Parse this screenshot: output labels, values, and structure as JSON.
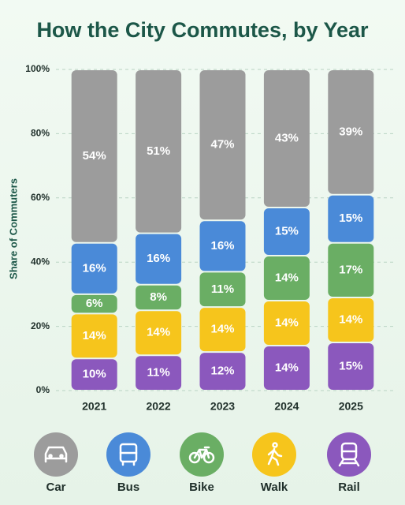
{
  "chart_data": {
    "type": "stacked_bar",
    "title": "How the City Commutes, by Year",
    "y_label": "Share of Commuters",
    "categories": [
      "2021",
      "2022",
      "2023",
      "2024",
      "2025"
    ],
    "series": [
      {
        "name": "Car",
        "color": "#9c9c9c",
        "values": [
          54,
          51,
          47,
          43,
          39
        ],
        "value_labels": [
          "54%",
          "51%",
          "47%",
          "43%",
          "39%"
        ]
      },
      {
        "name": "Bus",
        "color": "#4a8ad8",
        "values": [
          16,
          16,
          16,
          15,
          15
        ],
        "value_labels": [
          "16%",
          "16%",
          "16%",
          "15%",
          "15%"
        ]
      },
      {
        "name": "Bike",
        "color": "#6aae64",
        "values": [
          6,
          8,
          11,
          14,
          17
        ],
        "value_labels": [
          "6%",
          "8%",
          "11%",
          "14%",
          "17%"
        ]
      },
      {
        "name": "Walk",
        "color": "#f6c51c",
        "values": [
          14,
          14,
          14,
          14,
          14
        ],
        "value_labels": [
          "14%",
          "14%",
          "14%",
          "14%",
          "14%"
        ]
      },
      {
        "name": "Rail",
        "color": "#8b58bd",
        "values": [
          10,
          11,
          12,
          14,
          15
        ],
        "value_labels": [
          "10%",
          "11%",
          "12%",
          "14%",
          "15%"
        ]
      }
    ],
    "ylim": [
      0,
      100
    ],
    "yticks": [
      {
        "value": 0,
        "label": "0%"
      },
      {
        "value": 20,
        "label": "20%"
      },
      {
        "value": 40,
        "label": "40%"
      },
      {
        "value": 60,
        "label": "60%"
      },
      {
        "value": 80,
        "label": "80%"
      },
      {
        "value": 100,
        "label": "100%"
      }
    ],
    "grid": true
  }
}
